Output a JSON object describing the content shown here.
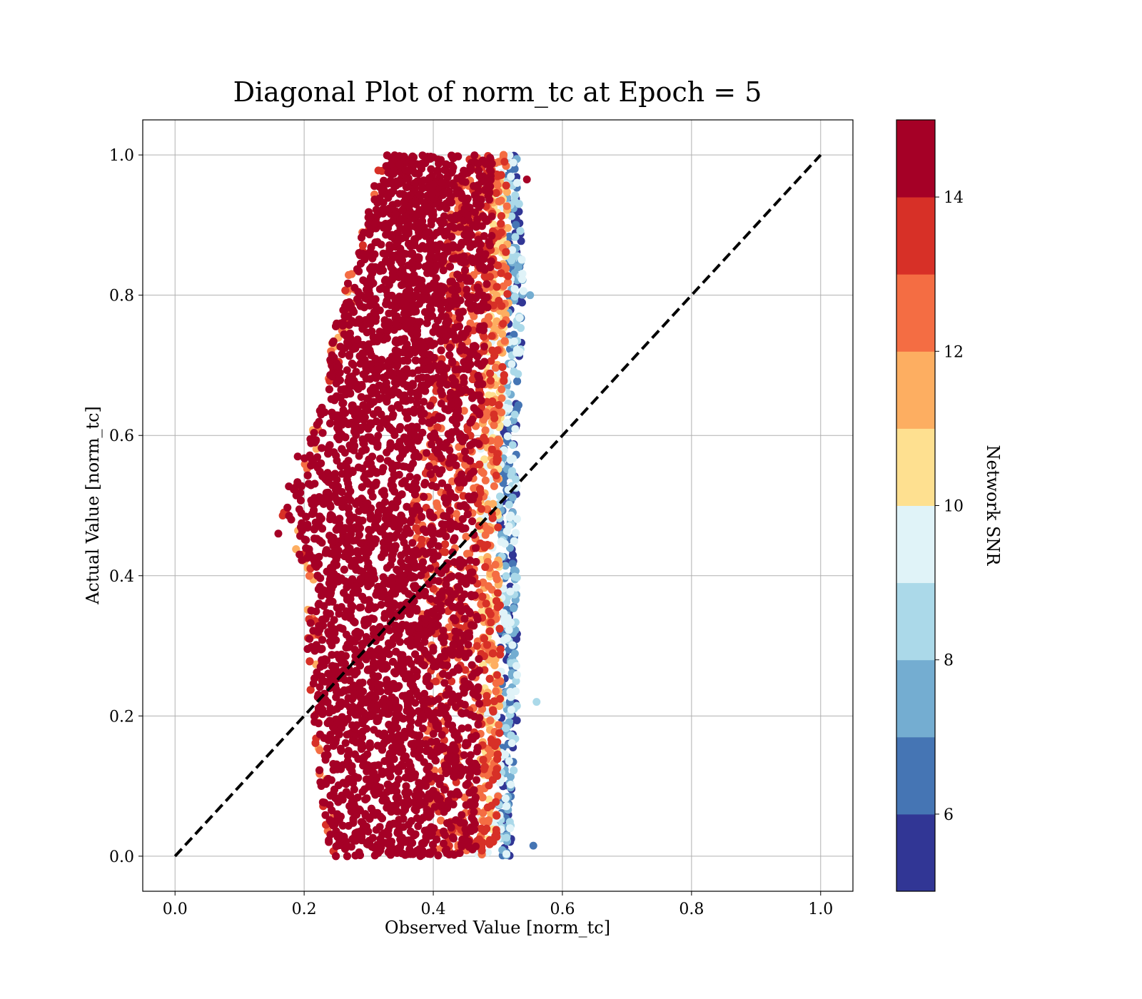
{
  "chart_data": {
    "type": "scatter",
    "title": "Diagonal Plot of norm_tc at Epoch = 5",
    "xlabel": "Observed Value [norm_tc]",
    "ylabel": "Actual Value [norm_tc]",
    "xlim": [
      -0.05,
      1.05
    ],
    "ylim": [
      -0.05,
      1.05
    ],
    "x_ticks": [
      "0.0",
      "0.2",
      "0.4",
      "0.6",
      "0.8",
      "1.0"
    ],
    "y_ticks": [
      "0.0",
      "0.2",
      "0.4",
      "0.6",
      "0.8",
      "1.0"
    ],
    "grid": true,
    "reference_line": {
      "from": [
        0,
        0
      ],
      "to": [
        1,
        1
      ],
      "style": "dashed",
      "color": "#000000"
    },
    "colorbar": {
      "label": "Network SNR",
      "range": [
        5,
        15
      ],
      "ticks": [
        "6",
        "8",
        "10",
        "12",
        "14"
      ],
      "tick_values": [
        6,
        8,
        10,
        12,
        14
      ],
      "levels": [
        5,
        6,
        7,
        8,
        9,
        10,
        11,
        12,
        13,
        14,
        15
      ],
      "colors": [
        "#313695",
        "#4575b4",
        "#74add1",
        "#abd9e9",
        "#e0f3f8",
        "#fee090",
        "#fdae61",
        "#f46d43",
        "#d73027",
        "#a50026"
      ]
    },
    "points_description_values": {
      "observed_range_by_actual": [
        {
          "actual": 0.0,
          "observed_min": 0.24,
          "observed_max": 0.52
        },
        {
          "actual": 0.2,
          "observed_min": 0.21,
          "observed_max": 0.53
        },
        {
          "actual": 0.4,
          "observed_min": 0.2,
          "observed_max": 0.53
        },
        {
          "actual": 0.5,
          "observed_min": 0.16,
          "observed_max": 0.53
        },
        {
          "actual": 0.6,
          "observed_min": 0.21,
          "observed_max": 0.53
        },
        {
          "actual": 0.8,
          "observed_min": 0.26,
          "observed_max": 0.54
        },
        {
          "actual": 1.0,
          "observed_min": 0.32,
          "observed_max": 0.53
        }
      ],
      "outliers": [
        {
          "x": 0.16,
          "y": 0.46,
          "snr": 14.5
        },
        {
          "x": 0.18,
          "y": 0.48,
          "snr": 14.5
        },
        {
          "x": 0.19,
          "y": 0.57,
          "snr": 14.5
        },
        {
          "x": 0.56,
          "y": 0.22,
          "snr": 8.5
        },
        {
          "x": 0.555,
          "y": 0.015,
          "snr": 6.5
        },
        {
          "x": 0.545,
          "y": 0.965,
          "snr": 14.5
        },
        {
          "x": 0.55,
          "y": 0.8,
          "snr": 7.5
        }
      ]
    }
  }
}
